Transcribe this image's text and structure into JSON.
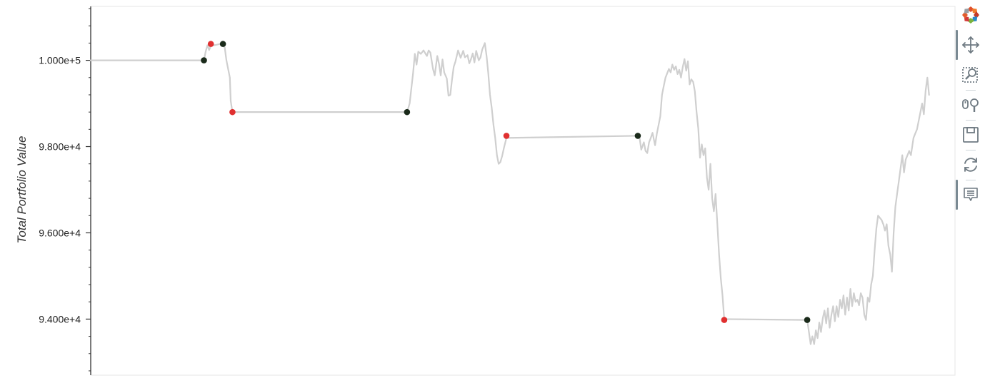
{
  "chart_data": {
    "type": "line",
    "title": "",
    "ylabel": "Total Portfolio Value",
    "xlabel": "",
    "ylim": [
      92700,
      101250
    ],
    "xlim": [
      0,
      1000
    ],
    "y_ticks": [
      94000,
      96000,
      98000,
      100000
    ],
    "y_tick_labels": [
      "9.400e+4",
      "9.600e+4",
      "9.800e+4",
      "1.000e+5"
    ],
    "grid": false,
    "series": [
      {
        "line_color": "#cfcfcf",
        "points": [
          [
            0,
            100000
          ],
          [
            131,
            100000
          ],
          [
            133,
            100200
          ],
          [
            135,
            100350
          ],
          [
            137,
            100240
          ],
          [
            140,
            100380
          ],
          [
            143,
            100350
          ],
          [
            150,
            100380
          ],
          [
            152,
            100350
          ],
          [
            155,
            100300
          ],
          [
            157,
            100000
          ],
          [
            159,
            99800
          ],
          [
            161,
            99600
          ],
          [
            162,
            99060
          ],
          [
            164,
            98800
          ],
          [
            366,
            98800
          ],
          [
            369,
            99000
          ],
          [
            371,
            99350
          ],
          [
            373,
            99700
          ],
          [
            375,
            100150
          ],
          [
            377,
            99900
          ],
          [
            379,
            100200
          ],
          [
            382,
            100150
          ],
          [
            385,
            100230
          ],
          [
            389,
            100100
          ],
          [
            391,
            100230
          ],
          [
            393,
            100180
          ],
          [
            396,
            99800
          ],
          [
            398,
            99650
          ],
          [
            401,
            100100
          ],
          [
            403,
            99920
          ],
          [
            405,
            99650
          ],
          [
            407,
            100020
          ],
          [
            409,
            99720
          ],
          [
            412,
            99580
          ],
          [
            414,
            99180
          ],
          [
            416,
            99200
          ],
          [
            418,
            99550
          ],
          [
            420,
            99850
          ],
          [
            422,
            99970
          ],
          [
            425,
            100230
          ],
          [
            428,
            100060
          ],
          [
            431,
            100220
          ],
          [
            433,
            100070
          ],
          [
            436,
            100120
          ],
          [
            438,
            99930
          ],
          [
            440,
            100030
          ],
          [
            442,
            100160
          ],
          [
            444,
            99950
          ],
          [
            446,
            100220
          ],
          [
            449,
            100000
          ],
          [
            451,
            100070
          ],
          [
            453,
            100250
          ],
          [
            456,
            100400
          ],
          [
            458,
            100100
          ],
          [
            460,
            99700
          ],
          [
            462,
            99200
          ],
          [
            464,
            98900
          ],
          [
            466,
            98500
          ],
          [
            468,
            98200
          ],
          [
            470,
            97800
          ],
          [
            472,
            97600
          ],
          [
            474,
            97640
          ],
          [
            476,
            97780
          ],
          [
            478,
            97960
          ],
          [
            481,
            98200
          ],
          [
            633,
            98250
          ],
          [
            635,
            98200
          ],
          [
            637,
            97930
          ],
          [
            640,
            98100
          ],
          [
            642,
            97900
          ],
          [
            644,
            97850
          ],
          [
            646,
            98100
          ],
          [
            648,
            98200
          ],
          [
            650,
            98320
          ],
          [
            653,
            98030
          ],
          [
            655,
            98300
          ],
          [
            657,
            98500
          ],
          [
            659,
            98700
          ],
          [
            661,
            99200
          ],
          [
            663,
            99400
          ],
          [
            665,
            99600
          ],
          [
            667,
            99700
          ],
          [
            669,
            99800
          ],
          [
            671,
            99720
          ],
          [
            673,
            99900
          ],
          [
            675,
            99780
          ],
          [
            677,
            99860
          ],
          [
            679,
            99680
          ],
          [
            681,
            99780
          ],
          [
            683,
            99600
          ],
          [
            685,
            99850
          ],
          [
            687,
            100030
          ],
          [
            689,
            99760
          ],
          [
            691,
            99980
          ],
          [
            693,
            99440
          ],
          [
            695,
            99560
          ],
          [
            697,
            99500
          ],
          [
            699,
            99280
          ],
          [
            701,
            98800
          ],
          [
            703,
            98420
          ],
          [
            705,
            97740
          ],
          [
            707,
            98050
          ],
          [
            709,
            97800
          ],
          [
            711,
            97960
          ],
          [
            713,
            97280
          ],
          [
            715,
            97000
          ],
          [
            717,
            97600
          ],
          [
            719,
            96800
          ],
          [
            721,
            96500
          ],
          [
            723,
            96900
          ],
          [
            725,
            96200
          ],
          [
            727,
            95500
          ],
          [
            729,
            94950
          ],
          [
            731,
            94550
          ],
          [
            733,
            94000
          ],
          [
            829,
            93980
          ],
          [
            831,
            93700
          ],
          [
            833,
            93420
          ],
          [
            835,
            93600
          ],
          [
            837,
            93420
          ],
          [
            839,
            93740
          ],
          [
            841,
            93560
          ],
          [
            843,
            93920
          ],
          [
            845,
            93700
          ],
          [
            847,
            94020
          ],
          [
            849,
            94200
          ],
          [
            851,
            93900
          ],
          [
            853,
            94250
          ],
          [
            855,
            93800
          ],
          [
            857,
            94100
          ],
          [
            859,
            94300
          ],
          [
            861,
            93950
          ],
          [
            863,
            94300
          ],
          [
            865,
            94050
          ],
          [
            867,
            94450
          ],
          [
            869,
            94250
          ],
          [
            871,
            94550
          ],
          [
            873,
            94100
          ],
          [
            875,
            94500
          ],
          [
            877,
            94200
          ],
          [
            879,
            94700
          ],
          [
            881,
            94300
          ],
          [
            883,
            94600
          ],
          [
            885,
            94400
          ],
          [
            887,
            94450
          ],
          [
            889,
            94320
          ],
          [
            891,
            94600
          ],
          [
            893,
            94500
          ],
          [
            895,
            94100
          ],
          [
            897,
            93980
          ],
          [
            899,
            94500
          ],
          [
            901,
            94400
          ],
          [
            903,
            94800
          ],
          [
            905,
            95000
          ],
          [
            907,
            95600
          ],
          [
            909,
            96100
          ],
          [
            911,
            96400
          ],
          [
            913,
            96350
          ],
          [
            915,
            96300
          ],
          [
            917,
            96200
          ],
          [
            919,
            96050
          ],
          [
            921,
            96200
          ],
          [
            923,
            95700
          ],
          [
            925,
            95500
          ],
          [
            927,
            95100
          ],
          [
            929,
            96000
          ],
          [
            931,
            96600
          ],
          [
            933,
            96900
          ],
          [
            935,
            97200
          ],
          [
            937,
            97500
          ],
          [
            939,
            97800
          ],
          [
            941,
            97400
          ],
          [
            943,
            97700
          ],
          [
            945,
            97800
          ],
          [
            947,
            97900
          ],
          [
            949,
            97800
          ],
          [
            952,
            98200
          ],
          [
            954,
            98300
          ],
          [
            956,
            98400
          ],
          [
            958,
            98600
          ],
          [
            960,
            98800
          ],
          [
            962,
            99000
          ],
          [
            964,
            98750
          ],
          [
            966,
            99300
          ],
          [
            968,
            99600
          ],
          [
            970,
            99200
          ]
        ]
      },
      {
        "line_color": "#cfcfcf",
        "points": [
          [
            151,
            100380
          ],
          [
            155,
            100380
          ]
        ]
      }
    ],
    "markers": [
      {
        "x": 131,
        "y": 100000,
        "color": "#1a2a1a"
      },
      {
        "x": 139,
        "y": 100380,
        "color": "#e03030"
      },
      {
        "x": 153,
        "y": 100380,
        "color": "#1a2a1a"
      },
      {
        "x": 164,
        "y": 98800,
        "color": "#e03030"
      },
      {
        "x": 366,
        "y": 98800,
        "color": "#1a2a1a"
      },
      {
        "x": 481,
        "y": 98250,
        "color": "#e03030"
      },
      {
        "x": 633,
        "y": 98250,
        "color": "#1a2a1a"
      },
      {
        "x": 733,
        "y": 93980,
        "color": "#e03030"
      },
      {
        "x": 829,
        "y": 93980,
        "color": "#1a2a1a"
      }
    ]
  },
  "toolbar": {
    "tools": [
      {
        "name": "bokeh-logo-icon",
        "active": false
      },
      {
        "name": "pan-tool-icon",
        "active": true
      },
      {
        "name": "box-zoom-tool-icon",
        "active": false
      },
      {
        "name": "wheel-zoom-tool-icon",
        "active": false
      },
      {
        "name": "save-tool-icon",
        "active": false
      },
      {
        "name": "reset-tool-icon",
        "active": false
      },
      {
        "name": "hover-tool-icon",
        "active": true
      }
    ]
  }
}
